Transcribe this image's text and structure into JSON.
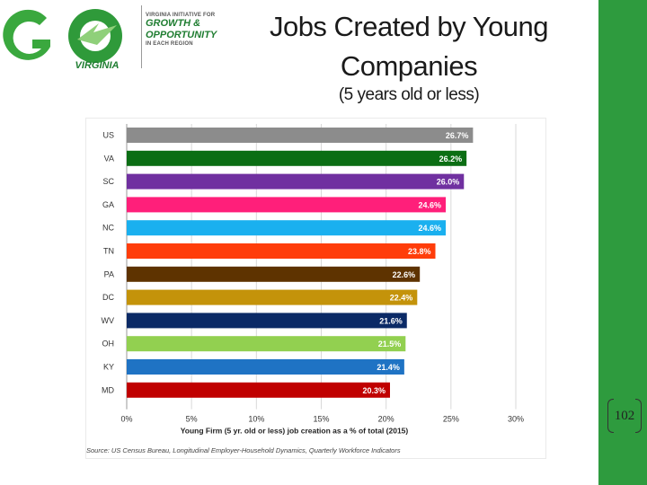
{
  "logo": {
    "big_letters": "GO",
    "state": "VIRGINIA",
    "line1": "VIRGINIA INITIATIVE FOR",
    "line2": "GROWTH &",
    "line3": "OPPORTUNITY",
    "line4": "IN EACH REGION"
  },
  "slide": {
    "title": "Jobs Created by Young Companies",
    "subtitle": "(5 years old or less)",
    "page_number": "102"
  },
  "chart_data": {
    "type": "bar",
    "orientation": "horizontal",
    "categories": [
      "US",
      "VA",
      "SC",
      "GA",
      "NC",
      "TN",
      "PA",
      "DC",
      "WV",
      "OH",
      "KY",
      "MD"
    ],
    "values": [
      26.7,
      26.2,
      26.0,
      24.6,
      24.6,
      23.8,
      22.6,
      22.4,
      21.6,
      21.5,
      21.4,
      20.3
    ],
    "value_labels": [
      "26.7%",
      "26.2%",
      "26.0%",
      "24.6%",
      "24.6%",
      "23.8%",
      "22.6%",
      "22.4%",
      "21.6%",
      "21.5%",
      "21.4%",
      "20.3%"
    ],
    "colors": [
      "#8c8c8c",
      "#0b6e14",
      "#7030a0",
      "#ff1f7a",
      "#1ab0ef",
      "#ff3d0a",
      "#5e3300",
      "#c4930a",
      "#0b2a66",
      "#92d050",
      "#1f73c4",
      "#c00000"
    ],
    "label_colors": [
      "#ffffff",
      "#ffffff",
      "#ffffff",
      "#ffffff",
      "#ffffff",
      "#ffffff",
      "#ffffff",
      "#ffffff",
      "#ffffff",
      "#ffffff",
      "#ffffff",
      "#ffffff"
    ],
    "xticks": [
      "0%",
      "5%",
      "10%",
      "15%",
      "20%",
      "25%",
      "30%"
    ],
    "xlim": [
      0,
      30
    ],
    "xlabel": "Young Firm (5 yr. old or less) job creation as a % of total (2015)",
    "source": "Source: US Census Bureau, Longitudinal Employer-Household Dynamics, Quarterly Workforce Indicators",
    "grid": true
  }
}
